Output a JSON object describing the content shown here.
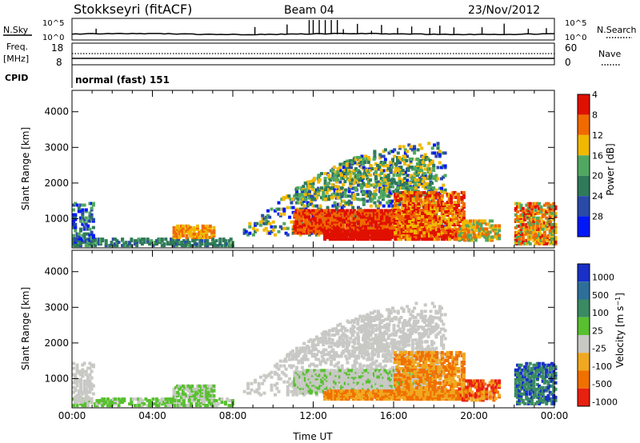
{
  "header": {
    "station": "Stokkseyri (fitACF)",
    "beam": "Beam 04",
    "date": "23/Nov/2012"
  },
  "noise_panel": {
    "left_label": "N.Sky",
    "left_ticks": [
      "10^5",
      "10^0"
    ],
    "right_ticks": [
      "10^5",
      "10^0"
    ],
    "right_label": "N.Search"
  },
  "freq_panel": {
    "left_label_1": "Freq.",
    "left_label_2": "[MHz]",
    "left_ticks": [
      "18",
      "8"
    ],
    "right_ticks": [
      "60",
      "0"
    ],
    "right_label": "Nave"
  },
  "cpid_panel": {
    "label": "CPID",
    "mode_text": "normal (fast) 151"
  },
  "chart_data": [
    {
      "type": "heatmap",
      "name": "power",
      "xlabel": "",
      "ylabel": "Slant Range [km]",
      "xlim": [
        0,
        24
      ],
      "ylim": [
        180,
        4600
      ],
      "y_ticks": [
        "1000",
        "2000",
        "3000",
        "4000"
      ],
      "colorbar": {
        "label": "Power [dB]",
        "ticks": [
          "4",
          "8",
          "12",
          "16",
          "20",
          "24",
          "28"
        ],
        "colors": [
          "#0018f8",
          "#2a4aa8",
          "#2f7a5a",
          "#50a860",
          "#f0b800",
          "#f06a00",
          "#e01000"
        ]
      }
    },
    {
      "type": "heatmap",
      "name": "velocity",
      "xlabel": "Time UT",
      "ylabel": "Slant Range [km]",
      "xlim": [
        0,
        24
      ],
      "ylim": [
        180,
        4600
      ],
      "x_ticks": [
        "00:00",
        "04:00",
        "08:00",
        "12:00",
        "16:00",
        "20:00",
        "00:00"
      ],
      "y_ticks": [
        "1000",
        "2000",
        "3000",
        "4000"
      ],
      "colorbar": {
        "label": "Velocity [m s^-1]",
        "ticks": [
          "1000",
          "500",
          "100",
          "25",
          "-25",
          "-100",
          "-500",
          "-1000"
        ],
        "colors": [
          "#1830c8",
          "#2e6f9a",
          "#3a8a62",
          "#58c030",
          "#c8c8c4",
          "#f0a820",
          "#f07000",
          "#e82010"
        ]
      }
    }
  ]
}
